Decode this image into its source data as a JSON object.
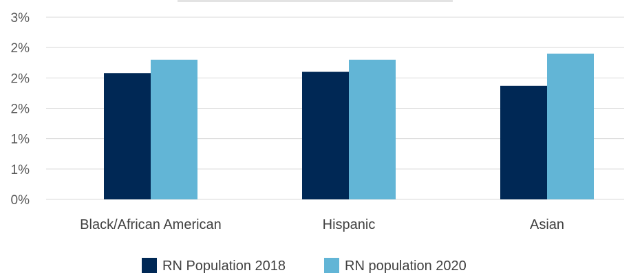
{
  "chart_data": {
    "type": "bar",
    "categories": [
      "Black/African American",
      "Hispanic",
      "Asian"
    ],
    "series": [
      {
        "name": "RN Population 2018",
        "color": "#002855",
        "values": [
          2.08,
          2.1,
          1.87
        ]
      },
      {
        "name": "RN population 2020",
        "color": "#62b5d6",
        "values": [
          2.3,
          2.3,
          2.4
        ]
      }
    ],
    "ylim": [
      0,
      3
    ],
    "y_ticks": [
      0,
      0.5,
      1,
      1.5,
      2,
      2.5,
      3
    ],
    "y_tick_labels": [
      "0%",
      "1%",
      "1%",
      "2%",
      "2%",
      "2%",
      "3%"
    ],
    "grid": true,
    "legend_placement": "bottom-center",
    "title": "",
    "xlabel": "",
    "ylabel": ""
  }
}
